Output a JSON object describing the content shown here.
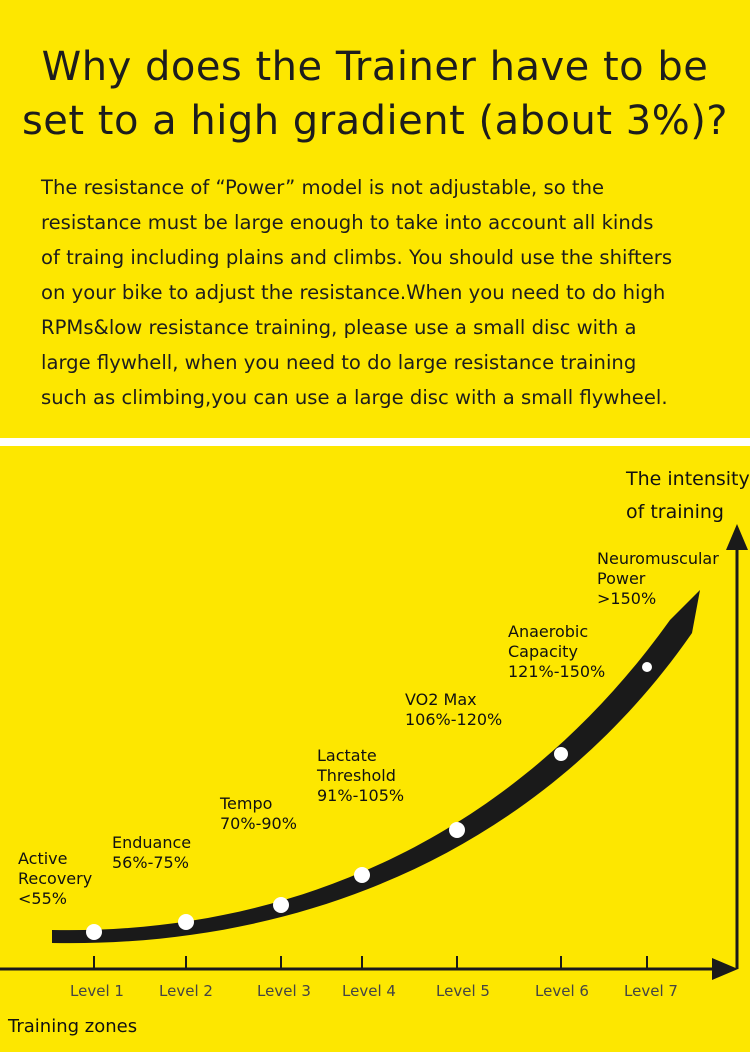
{
  "header": {
    "title_line1": "Why does the Trainer have to be",
    "title_line2": "set to a high gradient (about 3%)?",
    "paragraph": [
      "The resistance of  “Power”  model is not adjustable, so the",
      "resistance must be large enough to take into account all kinds",
      "of traing including plains and climbs. You should use the shifters",
      "on your bike to adjust the resistance.When you need to do high",
      "RPMs&low resistance training, please use a small disc with a",
      "large flywhell, when you need to do  large resistance training",
      "such as climbing,you can use a large disc with a small flywheel."
    ]
  },
  "colors": {
    "background": "#FDE700",
    "curve": "#1a1a1a",
    "divider": "#FFFFFF",
    "point": "#FFFFFF"
  },
  "chart_data": {
    "type": "line",
    "xlabel": "Training zones",
    "ylabel": "The intensity of training",
    "ylabel_lines": [
      "The intensity",
      "of training"
    ],
    "categories": [
      "Level 1",
      "Level 2",
      "Level 3",
      "Level 4",
      "Level 5",
      "Level 6",
      "Level 7"
    ],
    "zones": [
      {
        "lines": [
          "Active",
          "Recovery",
          "<55%"
        ]
      },
      {
        "lines": [
          "Enduance",
          "56%-75%"
        ]
      },
      {
        "lines": [
          "Tempo",
          "70%-90%"
        ]
      },
      {
        "lines": [
          "Lactate",
          "Threshold",
          "91%-105%"
        ]
      },
      {
        "lines": [
          "VO2 Max",
          "106%-120%"
        ]
      },
      {
        "lines": [
          "Anaerobic",
          "Capacity",
          "121%-150%"
        ]
      },
      {
        "lines": [
          "Neuromuscular",
          "Power",
          ">150%"
        ]
      }
    ],
    "grid": false,
    "legend": "none"
  }
}
